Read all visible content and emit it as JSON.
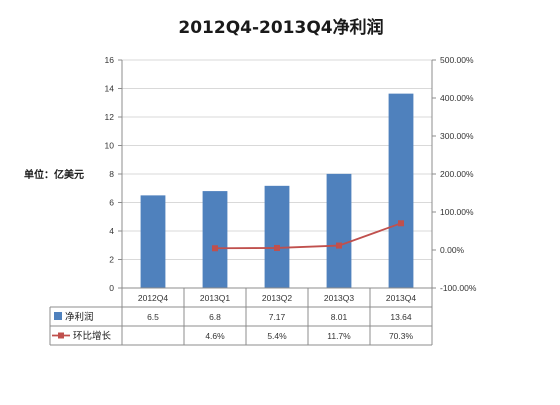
{
  "chart_data": {
    "type": "bar",
    "title": "2012Q4-2013Q4净利润",
    "unit_label": "单位：亿美元",
    "categories": [
      "2012Q4",
      "2013Q1",
      "2013Q2",
      "2013Q3",
      "2013Q4"
    ],
    "series": [
      {
        "name": "净利润",
        "type": "bar",
        "axis": "left",
        "color": "#4f81bd",
        "values": [
          6.5,
          6.8,
          7.17,
          8.01,
          13.64
        ],
        "labels": [
          "6.5",
          "6.8",
          "7.17",
          "8.01",
          "13.64"
        ]
      },
      {
        "name": "环比增长",
        "type": "line",
        "axis": "right",
        "color": "#c0504d",
        "values": [
          null,
          4.6,
          5.4,
          11.7,
          70.3
        ],
        "labels": [
          "",
          "4.6%",
          "5.4%",
          "11.7%",
          "70.3%"
        ]
      }
    ],
    "y_left": {
      "min": 0,
      "max": 16,
      "ticks": [
        "0",
        "2",
        "4",
        "6",
        "8",
        "10",
        "12",
        "14",
        "16"
      ]
    },
    "y_right": {
      "min": -100,
      "max": 500,
      "ticks": [
        "-100.00%",
        "0.00%",
        "100.00%",
        "200.00%",
        "300.00%",
        "400.00%",
        "500.00%"
      ]
    },
    "grid": "horizontal",
    "data_table": true
  }
}
